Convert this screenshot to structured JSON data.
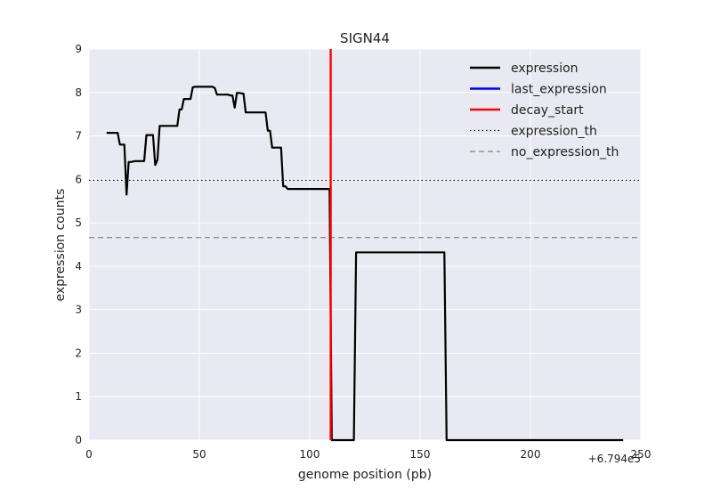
{
  "chart_data": {
    "type": "line",
    "title": "SIGN44",
    "xlabel": "genome position (pb)",
    "ylabel": "expression counts",
    "x_offset_label": "+6.794e5",
    "xlim": [
      0,
      250
    ],
    "ylim": [
      0,
      9
    ],
    "xticks": [
      0,
      50,
      100,
      150,
      200,
      250
    ],
    "yticks": [
      0,
      1,
      2,
      3,
      4,
      5,
      6,
      7,
      8,
      9
    ],
    "grid": true,
    "legend_position": "top-right",
    "background_color": "#e9e9f1",
    "series": [
      {
        "name": "expression",
        "color": "#000000",
        "style": "solid",
        "x": [
          8,
          13,
          14,
          16,
          17,
          18,
          19,
          21,
          22,
          25,
          26,
          29,
          30,
          31,
          32,
          33,
          40,
          41,
          42,
          43,
          44,
          46,
          47,
          48,
          56,
          57,
          58,
          63,
          64,
          65,
          66,
          67,
          68,
          70,
          71,
          72,
          73,
          80,
          81,
          82,
          83,
          84,
          87,
          88,
          89,
          90,
          108,
          109,
          110,
          111,
          120,
          121,
          161,
          162,
          242
        ],
        "y": [
          7.07,
          7.07,
          6.8,
          6.8,
          5.65,
          6.4,
          6.4,
          6.42,
          6.42,
          6.42,
          7.02,
          7.02,
          6.33,
          6.45,
          7.23,
          7.23,
          7.23,
          7.61,
          7.61,
          7.85,
          7.85,
          7.85,
          8.12,
          8.13,
          8.13,
          8.1,
          7.95,
          7.95,
          7.93,
          7.93,
          7.65,
          7.99,
          7.99,
          7.97,
          7.54,
          7.54,
          7.54,
          7.54,
          7.12,
          7.12,
          6.73,
          6.73,
          6.73,
          5.84,
          5.84,
          5.78,
          5.78,
          5.78,
          0,
          0,
          0,
          4.32,
          4.32,
          0,
          0
        ]
      },
      {
        "name": "last_expression",
        "color": "#0000ff",
        "style": "solid",
        "x": [],
        "y": []
      },
      {
        "name": "decay_start",
        "color": "#ff0000",
        "style": "solid",
        "vline_x": 109.5
      },
      {
        "name": "expression_th",
        "color": "#000000",
        "style": "dotted",
        "hline_y": 5.98
      },
      {
        "name": "no_expression_th",
        "color": "#808080",
        "style": "dashed",
        "hline_y": 4.66
      }
    ]
  }
}
